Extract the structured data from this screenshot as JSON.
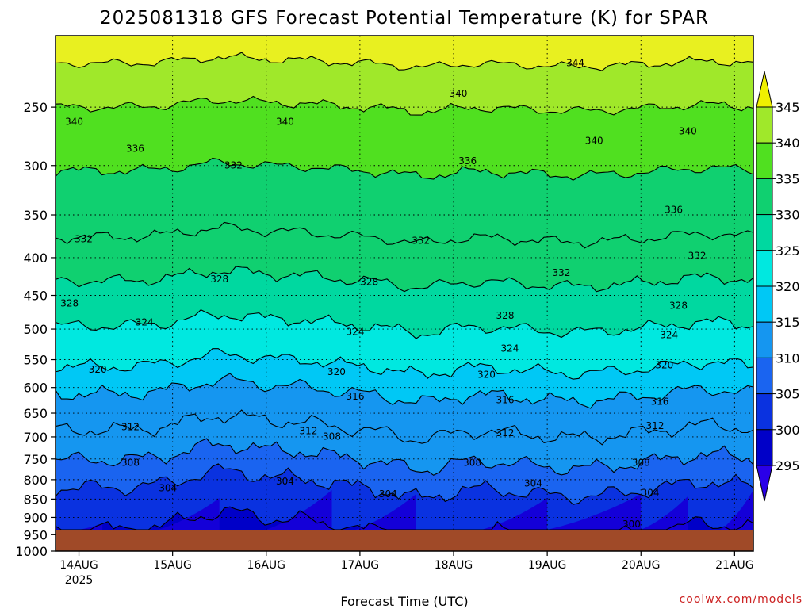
{
  "chart_data": {
    "type": "heatmap",
    "title": "2025081318 GFS Forecast Potential Temperature (K) for SPAR",
    "xlabel": "Forecast Time (UTC)",
    "ylabel": "",
    "y_scale": "log",
    "ylim": [
      1000,
      200
    ],
    "y_ticks": [
      250,
      300,
      350,
      400,
      450,
      500,
      550,
      600,
      650,
      700,
      750,
      800,
      850,
      900,
      950,
      1000
    ],
    "x_ticks": [
      {
        "label": "14AUG",
        "sub": "2025"
      },
      {
        "label": "15AUG",
        "sub": ""
      },
      {
        "label": "16AUG",
        "sub": ""
      },
      {
        "label": "17AUG",
        "sub": ""
      },
      {
        "label": "18AUG",
        "sub": ""
      },
      {
        "label": "19AUG",
        "sub": ""
      },
      {
        "label": "20AUG",
        "sub": ""
      },
      {
        "label": "21AUG",
        "sub": ""
      }
    ],
    "x_range_days": [
      13.75,
      21.2
    ],
    "grid": true,
    "colorbar": {
      "levels": [
        295,
        300,
        305,
        310,
        315,
        320,
        325,
        330,
        335,
        340,
        345
      ],
      "colors": [
        "#2a00e8",
        "#0000c8",
        "#0a32e0",
        "#1a64f0",
        "#1596f0",
        "#00c8f5",
        "#00e8e0",
        "#00d8a0",
        "#10d070",
        "#50e020",
        "#a0e82a",
        "#e8f020"
      ],
      "under_color": "#2a00e8",
      "over_color": "#f0f000"
    },
    "ground_color": "#a04a28",
    "contour_interval": 4,
    "contour_base_pressures": [
      {
        "value": 300,
        "p": 935
      },
      {
        "value": 304,
        "p": 820
      },
      {
        "value": 308,
        "p": 752
      },
      {
        "value": 312,
        "p": 685
      },
      {
        "value": 316,
        "p": 612
      },
      {
        "value": 320,
        "p": 562
      },
      {
        "value": 324,
        "p": 495
      },
      {
        "value": 328,
        "p": 430
      },
      {
        "value": 332,
        "p": 375
      },
      {
        "value": 336,
        "p": 305
      },
      {
        "value": 340,
        "p": 250
      },
      {
        "value": 344,
        "p": 218
      }
    ],
    "contour_labels": [
      {
        "value": 340,
        "day": 13.95,
        "p": 262
      },
      {
        "value": 336,
        "day": 14.6,
        "p": 285
      },
      {
        "value": 332,
        "day": 14.05,
        "p": 378
      },
      {
        "value": 328,
        "day": 13.9,
        "p": 462
      },
      {
        "value": 324,
        "day": 14.7,
        "p": 490
      },
      {
        "value": 320,
        "day": 14.2,
        "p": 568
      },
      {
        "value": 312,
        "day": 14.55,
        "p": 680
      },
      {
        "value": 308,
        "day": 14.55,
        "p": 760
      },
      {
        "value": 304,
        "day": 14.95,
        "p": 822
      },
      {
        "value": 340,
        "day": 16.2,
        "p": 262
      },
      {
        "value": 332,
        "day": 15.65,
        "p": 300
      },
      {
        "value": 328,
        "day": 15.5,
        "p": 428
      },
      {
        "value": 304,
        "day": 16.2,
        "p": 805
      },
      {
        "value": 312,
        "day": 16.45,
        "p": 688
      },
      {
        "value": 308,
        "day": 16.7,
        "p": 700
      },
      {
        "value": 320,
        "day": 16.75,
        "p": 572
      },
      {
        "value": 316,
        "day": 16.95,
        "p": 618
      },
      {
        "value": 324,
        "day": 16.95,
        "p": 505
      },
      {
        "value": 328,
        "day": 17.1,
        "p": 432
      },
      {
        "value": 332,
        "day": 17.65,
        "p": 380
      },
      {
        "value": 304,
        "day": 17.3,
        "p": 838
      },
      {
        "value": 336,
        "day": 18.15,
        "p": 296
      },
      {
        "value": 340,
        "day": 18.05,
        "p": 240
      },
      {
        "value": 320,
        "day": 18.35,
        "p": 577
      },
      {
        "value": 316,
        "day": 18.55,
        "p": 625
      },
      {
        "value": 312,
        "day": 18.55,
        "p": 692
      },
      {
        "value": 308,
        "day": 18.2,
        "p": 760
      },
      {
        "value": 324,
        "day": 18.6,
        "p": 532
      },
      {
        "value": 328,
        "day": 18.55,
        "p": 480
      },
      {
        "value": 304,
        "day": 18.85,
        "p": 810
      },
      {
        "value": 344,
        "day": 19.3,
        "p": 218
      },
      {
        "value": 340,
        "day": 19.5,
        "p": 278
      },
      {
        "value": 332,
        "day": 19.15,
        "p": 420
      },
      {
        "value": 340,
        "day": 20.5,
        "p": 270
      },
      {
        "value": 336,
        "day": 20.35,
        "p": 345
      },
      {
        "value": 332,
        "day": 20.6,
        "p": 398
      },
      {
        "value": 328,
        "day": 20.4,
        "p": 465
      },
      {
        "value": 324,
        "day": 20.3,
        "p": 510
      },
      {
        "value": 320,
        "day": 20.25,
        "p": 560
      },
      {
        "value": 316,
        "day": 20.2,
        "p": 628
      },
      {
        "value": 312,
        "day": 20.15,
        "p": 677
      },
      {
        "value": 308,
        "day": 20.0,
        "p": 760
      },
      {
        "value": 304,
        "day": 20.1,
        "p": 835
      },
      {
        "value": 300,
        "day": 19.9,
        "p": 920
      }
    ]
  },
  "credit": "coolwx.com/models"
}
